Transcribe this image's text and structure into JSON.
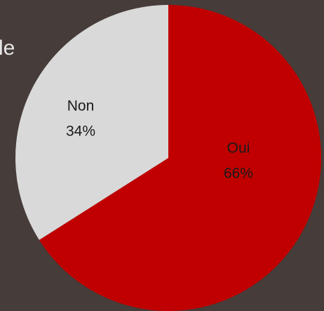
{
  "chart_data": {
    "type": "pie",
    "annotation": "le",
    "categories": [
      "Oui",
      "Non"
    ],
    "values": [
      66,
      34
    ],
    "value_labels": [
      "66%",
      "34%"
    ],
    "colors": [
      "#c00000",
      "#d9d9d9"
    ],
    "start_angle": 0,
    "direction": "clockwise"
  }
}
